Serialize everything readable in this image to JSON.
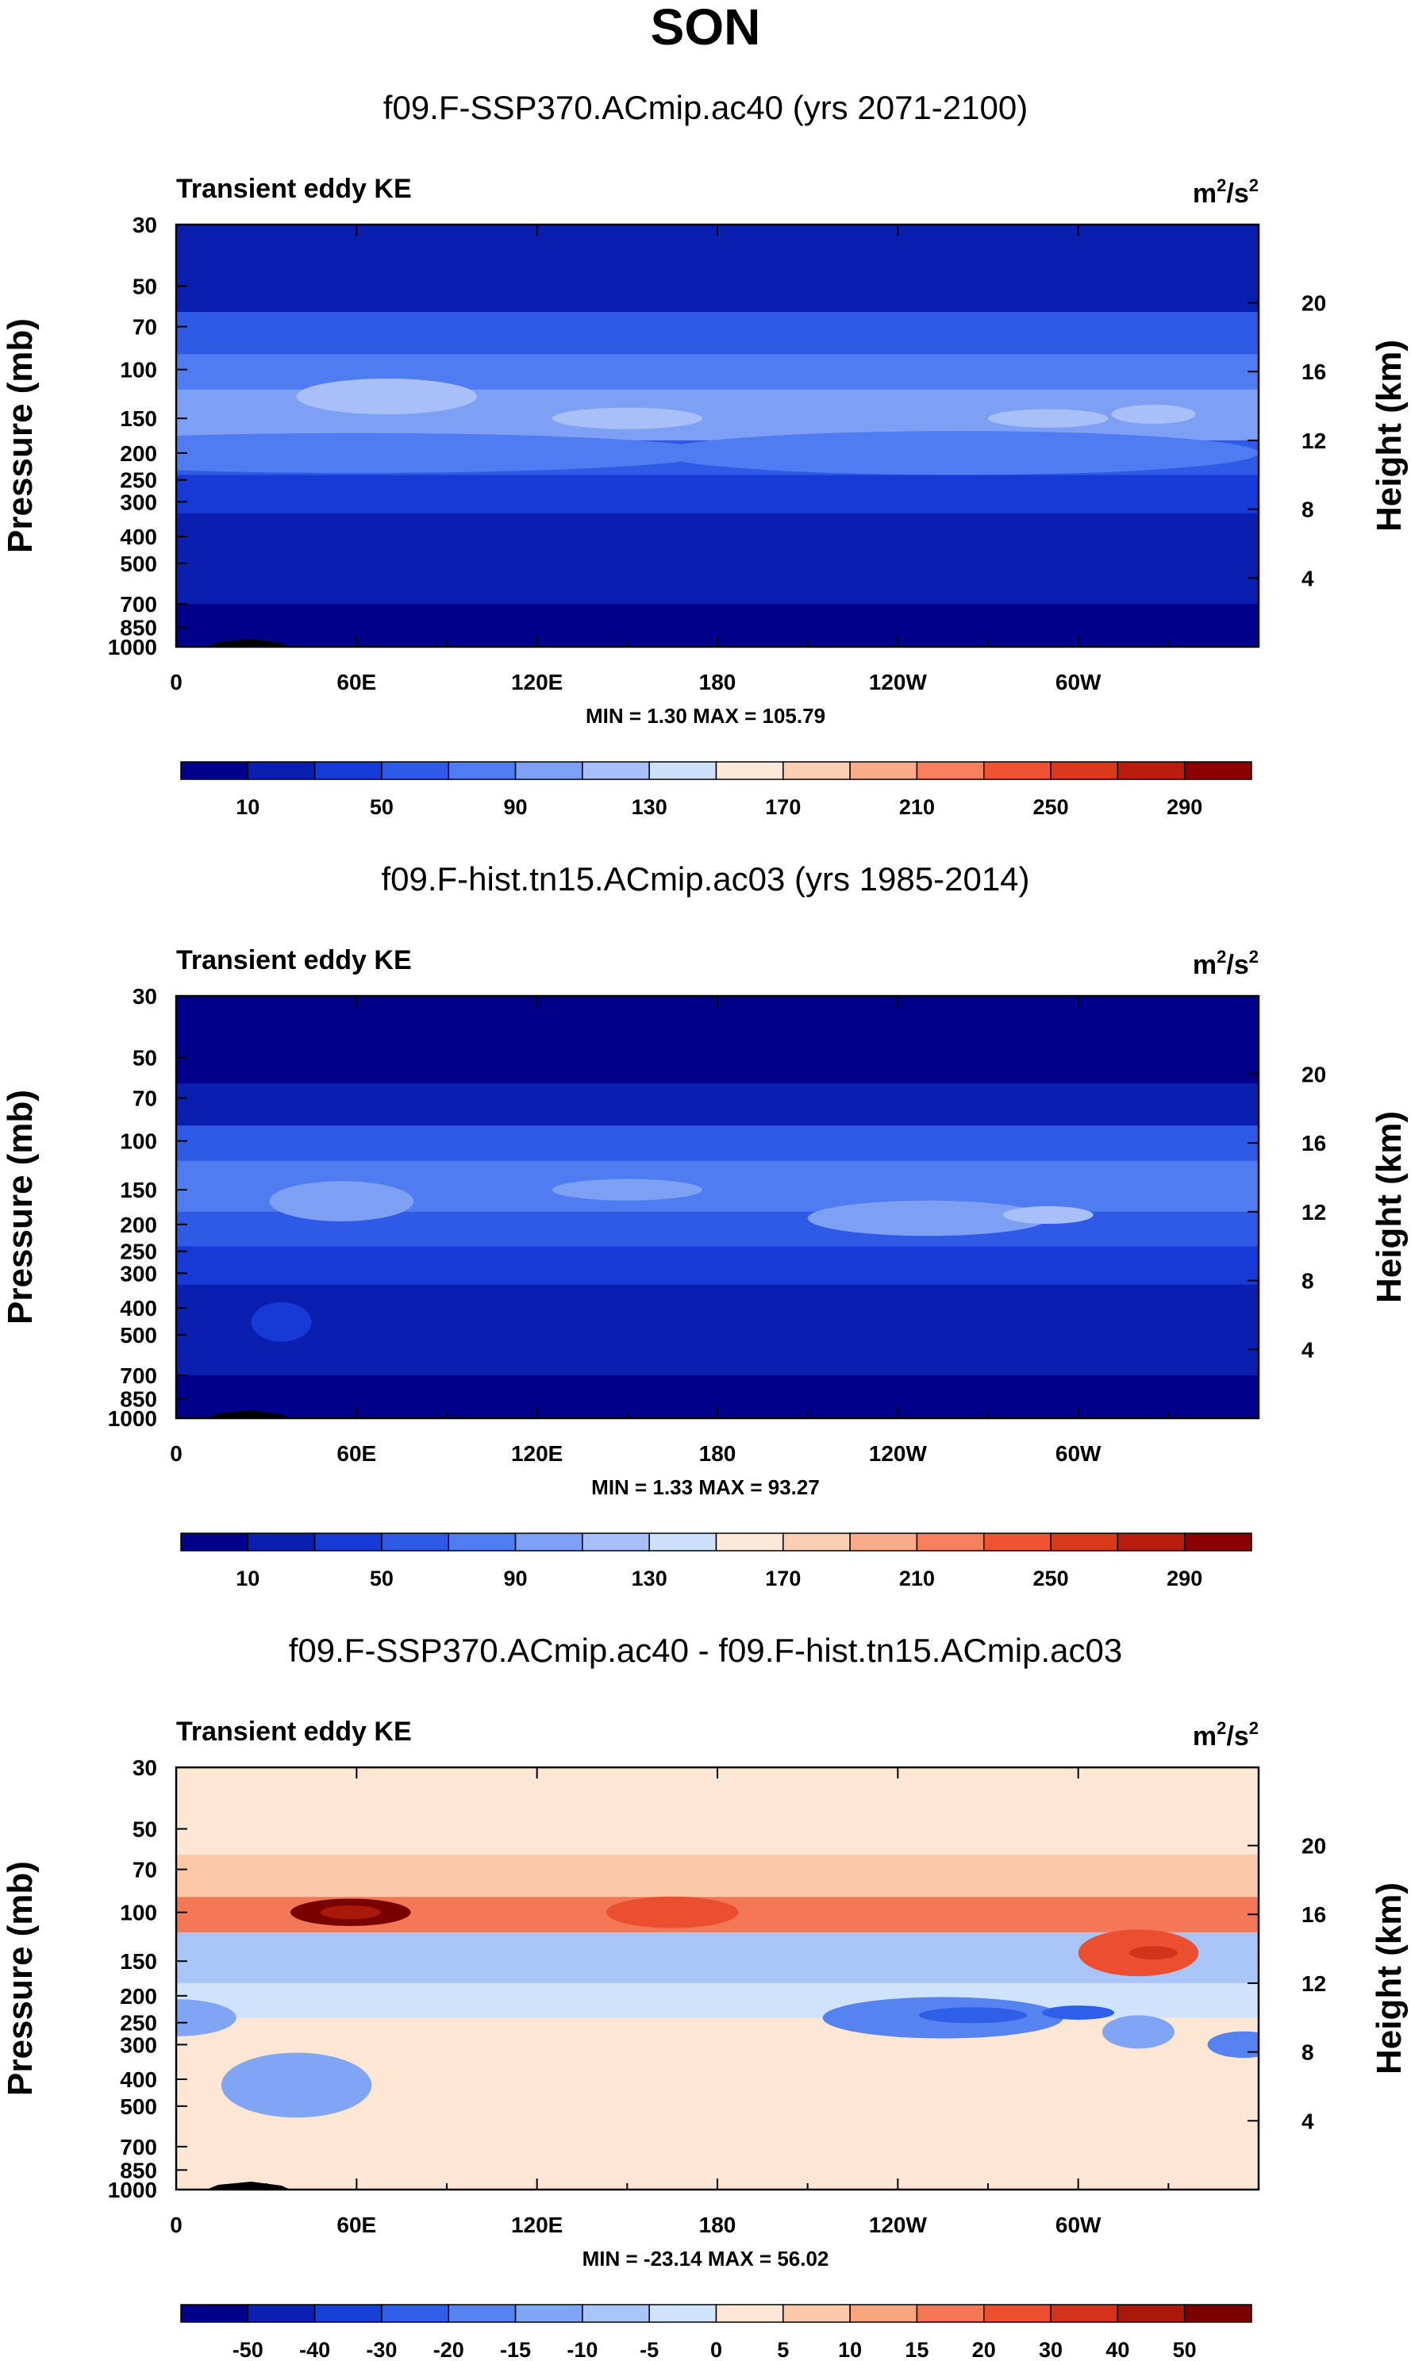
{
  "figure": {
    "main_title": "SON",
    "colors": {
      "abs_palette": [
        "#00008b",
        "#0a1fb0",
        "#1739d6",
        "#2e5ae6",
        "#4f7cf0",
        "#7d9ff4",
        "#a8c0f7",
        "#cde0fb",
        "#fce9d8",
        "#fbcfb4",
        "#f8ac8b",
        "#f57f5e",
        "#ee5434",
        "#d9391c",
        "#b81e0f",
        "#8b0000"
      ],
      "diff_palette": [
        "#00008b",
        "#0b20b1",
        "#1740d6",
        "#2f5fe8",
        "#5683ef",
        "#80a5f4",
        "#a9c5f8",
        "#d0e3fc",
        "#fde6d4",
        "#fbc9aa",
        "#f8a47f",
        "#f47856",
        "#ec4f30",
        "#d2331a",
        "#a8180b",
        "#7a0000"
      ]
    }
  },
  "chart_data": [
    {
      "type": "heatmap",
      "title": "f09.F-SSP370.ACmip.ac40 (yrs 2071-2100)",
      "corner_left": "Transient eddy KE",
      "units": {
        "base": "m",
        "exp1": "2",
        "mid": "/s",
        "exp2": "2"
      },
      "ylabel_left": "Pressure (mb)",
      "ylabel_right": "Height (km)",
      "y_ticks_left": [
        "30",
        "50",
        "70",
        "100",
        "150",
        "200",
        "250",
        "300",
        "400",
        "500",
        "700",
        "850",
        "1000"
      ],
      "y_ticks_right": [
        "20",
        "16",
        "12",
        "8",
        "4"
      ],
      "x_ticks": [
        "0",
        "60E",
        "120E",
        "180",
        "120W",
        "60W"
      ],
      "min_label": "MIN =",
      "min_value": "1.30",
      "max_label": "MAX =",
      "max_value": "105.79",
      "colorbar_labels": [
        "10",
        "50",
        "90",
        "130",
        "170",
        "210",
        "250",
        "290"
      ],
      "colorbar_values": [
        10,
        50,
        90,
        130,
        170,
        210,
        250,
        290
      ],
      "value_range": [
        1.3,
        105.79
      ],
      "band_levels": [
        1,
        3,
        4,
        5,
        3,
        2,
        1,
        0
      ],
      "yrange_mb": [
        1000,
        30
      ],
      "xrange_deg": [
        0,
        360
      ]
    },
    {
      "type": "heatmap",
      "title": "f09.F-hist.tn15.ACmip.ac03 (yrs 1985-2014)",
      "corner_left": "Transient eddy KE",
      "units": {
        "base": "m",
        "exp1": "2",
        "mid": "/s",
        "exp2": "2"
      },
      "ylabel_left": "Pressure (mb)",
      "ylabel_right": "Height (km)",
      "y_ticks_left": [
        "30",
        "50",
        "70",
        "100",
        "150",
        "200",
        "250",
        "300",
        "400",
        "500",
        "700",
        "850",
        "1000"
      ],
      "y_ticks_right": [
        "20",
        "16",
        "12",
        "8",
        "4"
      ],
      "x_ticks": [
        "0",
        "60E",
        "120E",
        "180",
        "120W",
        "60W"
      ],
      "min_label": "MIN =",
      "min_value": "1.33",
      "max_label": "MAX =",
      "max_value": "93.27",
      "colorbar_labels": [
        "10",
        "50",
        "90",
        "130",
        "170",
        "210",
        "250",
        "290"
      ],
      "colorbar_values": [
        10,
        50,
        90,
        130,
        170,
        210,
        250,
        290
      ],
      "value_range": [
        1.33,
        93.27
      ],
      "band_levels": [
        0,
        1,
        3,
        4,
        3,
        2,
        1,
        0
      ],
      "yrange_mb": [
        1000,
        30
      ],
      "xrange_deg": [
        0,
        360
      ]
    },
    {
      "type": "heatmap",
      "title": "f09.F-SSP370.ACmip.ac40 - f09.F-hist.tn15.ACmip.ac03",
      "corner_left": "Transient eddy KE",
      "units": {
        "base": "m",
        "exp1": "2",
        "mid": "/s",
        "exp2": "2"
      },
      "ylabel_left": "Pressure (mb)",
      "ylabel_right": "Height (km)",
      "y_ticks_left": [
        "30",
        "50",
        "70",
        "100",
        "150",
        "200",
        "250",
        "300",
        "400",
        "500",
        "700",
        "850",
        "1000"
      ],
      "y_ticks_right": [
        "20",
        "16",
        "12",
        "8",
        "4"
      ],
      "x_ticks": [
        "0",
        "60E",
        "120E",
        "180",
        "120W",
        "60W"
      ],
      "min_label": "MIN =",
      "min_value": "-23.14",
      "max_label": "MAX =",
      "max_value": "56.02",
      "colorbar_labels": [
        "-50",
        "-40",
        "-30",
        "-20",
        "-15",
        "-10",
        "-5",
        "0",
        "5",
        "10",
        "15",
        "20",
        "30",
        "40",
        "50"
      ],
      "colorbar_values": [
        -50,
        -40,
        -30,
        -20,
        -15,
        -10,
        -5,
        0,
        5,
        10,
        15,
        20,
        30,
        40,
        50
      ],
      "value_range": [
        -23.14,
        56.02
      ],
      "band_levels": [
        8,
        9,
        11,
        6,
        7,
        8,
        8,
        8
      ],
      "yrange_mb": [
        1000,
        30
      ],
      "xrange_deg": [
        0,
        360
      ]
    }
  ]
}
